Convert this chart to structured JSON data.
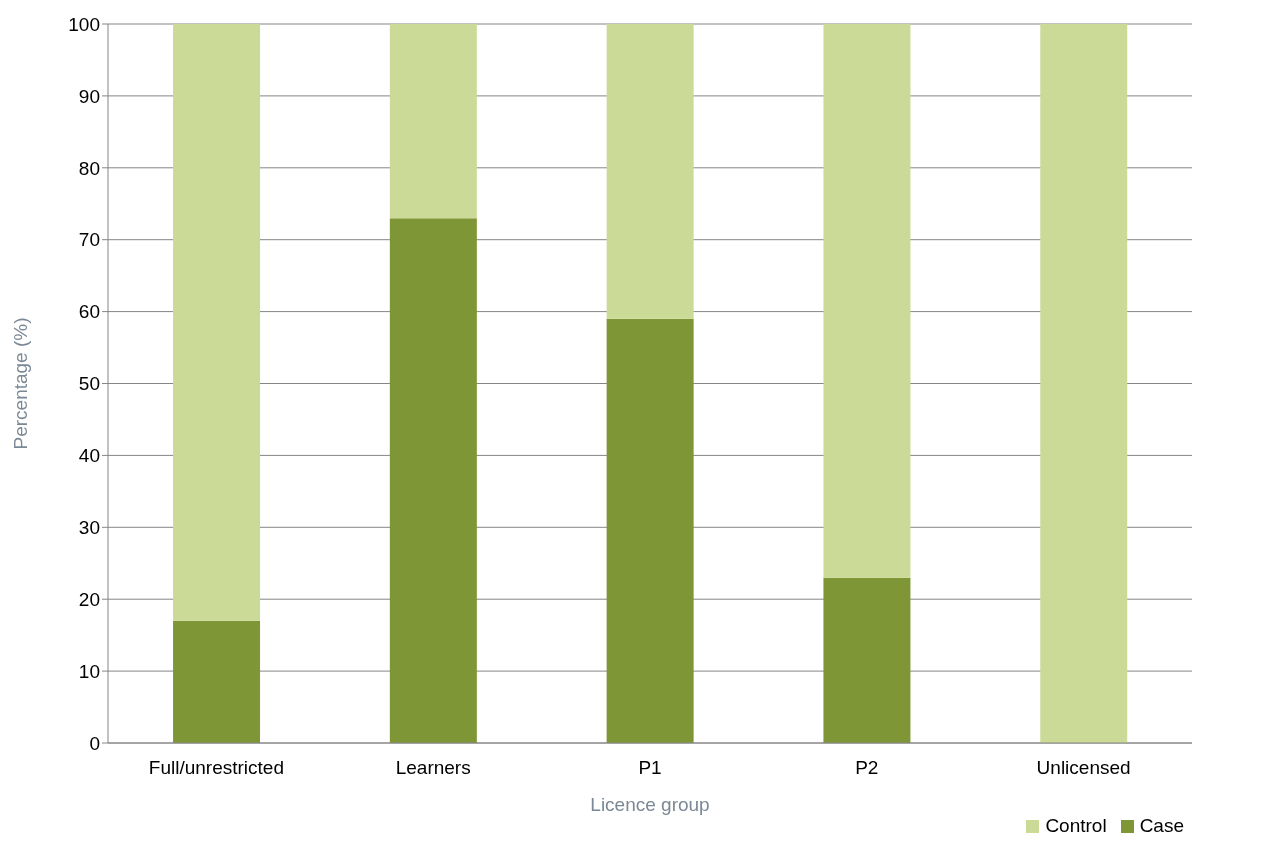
{
  "chart_data": {
    "type": "bar",
    "stacked": true,
    "xlabel": "Licence group",
    "ylabel": "Percentage (%)",
    "categories": [
      "Full/unrestricted",
      "Learners",
      "P1",
      "P2",
      "Unlicensed"
    ],
    "series": [
      {
        "name": "Case",
        "color": "#7f9636",
        "values": [
          17,
          73,
          59,
          23,
          0
        ]
      },
      {
        "name": "Control",
        "color": "#cbdb97",
        "values": [
          83,
          27,
          41,
          77,
          100
        ]
      }
    ],
    "ylim": [
      0,
      100
    ],
    "yticks": [
      0,
      10,
      20,
      30,
      40,
      50,
      60,
      70,
      80,
      90,
      100
    ],
    "grid": "y",
    "legend": "bottom right"
  }
}
